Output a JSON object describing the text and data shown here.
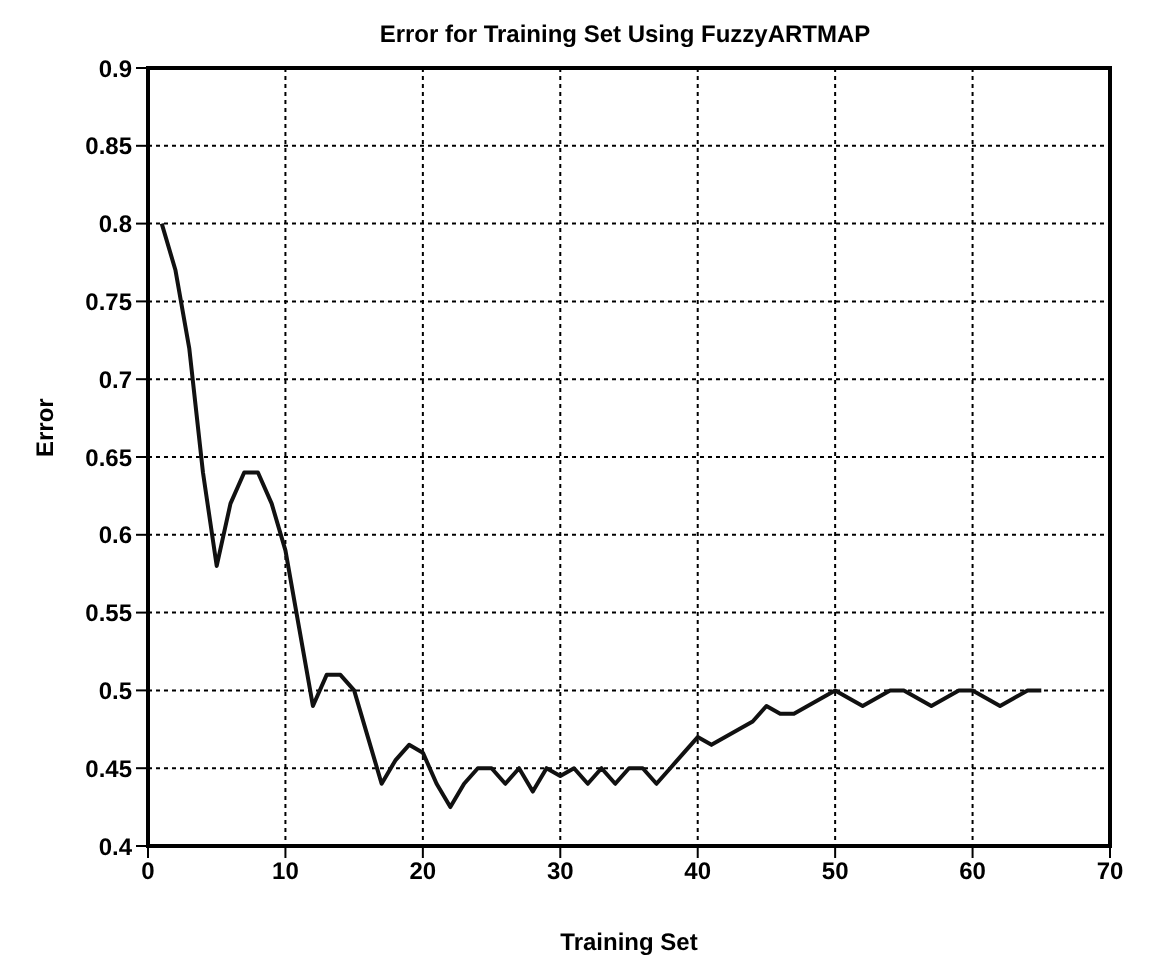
{
  "chart_data": {
    "type": "line",
    "title": "Error for Training Set Using FuzzyARTMAP",
    "xlabel": "Training Set",
    "ylabel": "Error",
    "x": [
      1,
      2,
      3,
      4,
      5,
      6,
      7,
      8,
      9,
      10,
      11,
      12,
      13,
      14,
      15,
      16,
      17,
      18,
      19,
      20,
      21,
      22,
      23,
      24,
      25,
      26,
      27,
      28,
      29,
      30,
      31,
      32,
      33,
      34,
      35,
      36,
      37,
      38,
      39,
      40,
      41,
      42,
      43,
      44,
      45,
      46,
      47,
      48,
      49,
      50,
      51,
      52,
      53,
      54,
      55,
      56,
      57,
      58,
      59,
      60,
      61,
      62,
      63,
      64,
      65
    ],
    "series": [
      {
        "color": "#111111",
        "values": [
          0.8,
          0.77,
          0.72,
          0.64,
          0.58,
          0.62,
          0.64,
          0.64,
          0.62,
          0.59,
          0.54,
          0.49,
          0.51,
          0.51,
          0.5,
          0.47,
          0.44,
          0.455,
          0.465,
          0.46,
          0.44,
          0.425,
          0.44,
          0.45,
          0.45,
          0.44,
          0.45,
          0.435,
          0.45,
          0.445,
          0.45,
          0.44,
          0.45,
          0.44,
          0.45,
          0.45,
          0.44,
          0.45,
          0.46,
          0.47,
          0.465,
          0.47,
          0.475,
          0.48,
          0.49,
          0.485,
          0.485,
          0.49,
          0.495,
          0.5,
          0.495,
          0.49,
          0.495,
          0.5,
          0.5,
          0.495,
          0.49,
          0.495,
          0.5,
          0.5,
          0.495,
          0.49,
          0.495,
          0.5,
          0.5
        ]
      }
    ],
    "xlim": [
      0,
      70
    ],
    "xticks": [
      0,
      10,
      20,
      30,
      40,
      50,
      60,
      70
    ],
    "ylim": [
      0.4,
      0.9
    ],
    "yticks": [
      0.4,
      0.45,
      0.5,
      0.55,
      0.6,
      0.65,
      0.7,
      0.75,
      0.8,
      0.85,
      0.9
    ],
    "grid": true,
    "line_style": "solid"
  }
}
